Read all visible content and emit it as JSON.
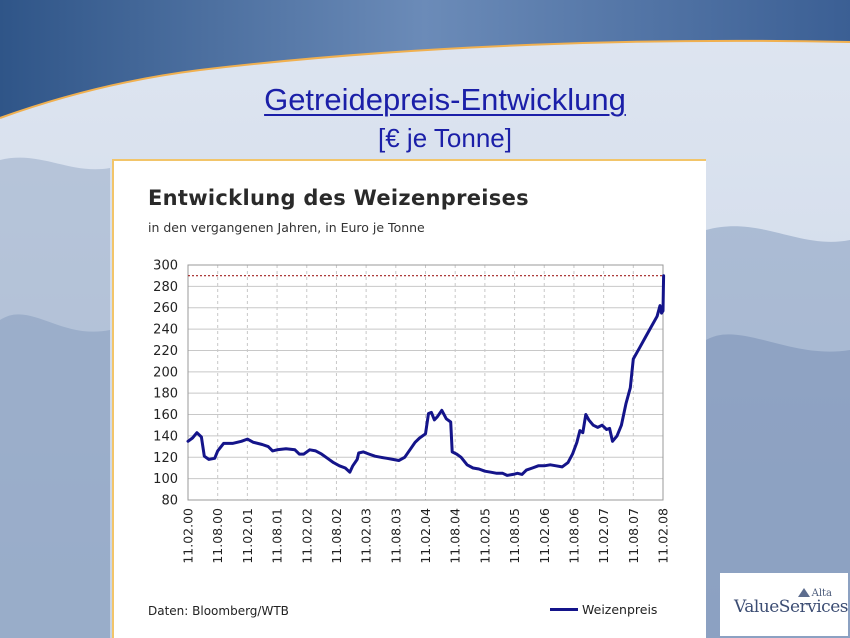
{
  "slide": {
    "title": "Getreidepreis-Entwicklung",
    "subtitle": "[€ je Tonne]"
  },
  "logo": {
    "text": "ValueServices",
    "alta": "Alta"
  },
  "colors": {
    "series": "#14148a",
    "reference_line": "#a02020",
    "slide_text": "#1b1fa8",
    "panel_border": "#f2c56a"
  },
  "chart_data": {
    "type": "line",
    "title": "Entwicklung des Weizenpreises",
    "subtitle": "in den vergangenen Jahren, in Euro je Tonne",
    "source": "Daten: Bloomberg/WTB",
    "ylim": [
      80,
      300
    ],
    "yticks": [
      80,
      100,
      120,
      140,
      160,
      180,
      200,
      220,
      240,
      260,
      280,
      300
    ],
    "xticks": [
      "11.02.00",
      "11.08.00",
      "11.02.01",
      "11.08.01",
      "11.02.02",
      "11.08.02",
      "11.02.03",
      "11.08.03",
      "11.02.04",
      "11.08.04",
      "11.02.05",
      "11.08.05",
      "11.02.06",
      "11.08.06",
      "11.02.07",
      "11.08.07",
      "11.02.08"
    ],
    "grid": true,
    "legend_position": "bottom-right",
    "reference_line": 290,
    "series": [
      {
        "name": "Weizenpreis",
        "points": [
          [
            0.0,
            135
          ],
          [
            0.15,
            138
          ],
          [
            0.3,
            143
          ],
          [
            0.45,
            139
          ],
          [
            0.55,
            121
          ],
          [
            0.7,
            118
          ],
          [
            0.9,
            119
          ],
          [
            1.0,
            126
          ],
          [
            1.2,
            133
          ],
          [
            1.5,
            133
          ],
          [
            1.8,
            135
          ],
          [
            2.0,
            137
          ],
          [
            2.2,
            134
          ],
          [
            2.5,
            132
          ],
          [
            2.7,
            130
          ],
          [
            2.85,
            126
          ],
          [
            3.0,
            127
          ],
          [
            3.3,
            128
          ],
          [
            3.6,
            127
          ],
          [
            3.75,
            123
          ],
          [
            3.9,
            123
          ],
          [
            4.1,
            127
          ],
          [
            4.3,
            126
          ],
          [
            4.5,
            123
          ],
          [
            4.7,
            119
          ],
          [
            4.9,
            115
          ],
          [
            5.1,
            112
          ],
          [
            5.3,
            110
          ],
          [
            5.45,
            106
          ],
          [
            5.55,
            112
          ],
          [
            5.7,
            118
          ],
          [
            5.75,
            124
          ],
          [
            5.9,
            125
          ],
          [
            6.1,
            123
          ],
          [
            6.3,
            121
          ],
          [
            6.5,
            120
          ],
          [
            6.7,
            119
          ],
          [
            6.9,
            118
          ],
          [
            7.1,
            117
          ],
          [
            7.3,
            120
          ],
          [
            7.5,
            128
          ],
          [
            7.65,
            134
          ],
          [
            7.8,
            138
          ],
          [
            8.0,
            142
          ],
          [
            8.1,
            161
          ],
          [
            8.2,
            162
          ],
          [
            8.3,
            155
          ],
          [
            8.4,
            158
          ],
          [
            8.55,
            164
          ],
          [
            8.7,
            156
          ],
          [
            8.85,
            153
          ],
          [
            8.9,
            125
          ],
          [
            9.05,
            123
          ],
          [
            9.2,
            120
          ],
          [
            9.4,
            113
          ],
          [
            9.6,
            110
          ],
          [
            9.8,
            109
          ],
          [
            10.0,
            107
          ],
          [
            10.2,
            106
          ],
          [
            10.4,
            105
          ],
          [
            10.6,
            105
          ],
          [
            10.75,
            103
          ],
          [
            10.95,
            104
          ],
          [
            11.1,
            105
          ],
          [
            11.25,
            104
          ],
          [
            11.4,
            108
          ],
          [
            11.6,
            110
          ],
          [
            11.8,
            112
          ],
          [
            12.0,
            112
          ],
          [
            12.2,
            113
          ],
          [
            12.4,
            112
          ],
          [
            12.6,
            111
          ],
          [
            12.8,
            115
          ],
          [
            12.95,
            123
          ],
          [
            13.1,
            134
          ],
          [
            13.2,
            145
          ],
          [
            13.3,
            143
          ],
          [
            13.4,
            160
          ],
          [
            13.5,
            155
          ],
          [
            13.65,
            150
          ],
          [
            13.8,
            148
          ],
          [
            13.95,
            150
          ],
          [
            14.1,
            146
          ],
          [
            14.2,
            147
          ],
          [
            14.3,
            135
          ],
          [
            14.45,
            140
          ],
          [
            14.6,
            150
          ],
          [
            14.75,
            170
          ],
          [
            14.9,
            185
          ],
          [
            15.0,
            212
          ],
          [
            15.2,
            222
          ],
          [
            15.4,
            232
          ],
          [
            15.6,
            242
          ],
          [
            15.8,
            252
          ],
          [
            15.9,
            262
          ],
          [
            15.95,
            255
          ],
          [
            16.0,
            257
          ],
          [
            16.02,
            290
          ]
        ]
      }
    ]
  }
}
